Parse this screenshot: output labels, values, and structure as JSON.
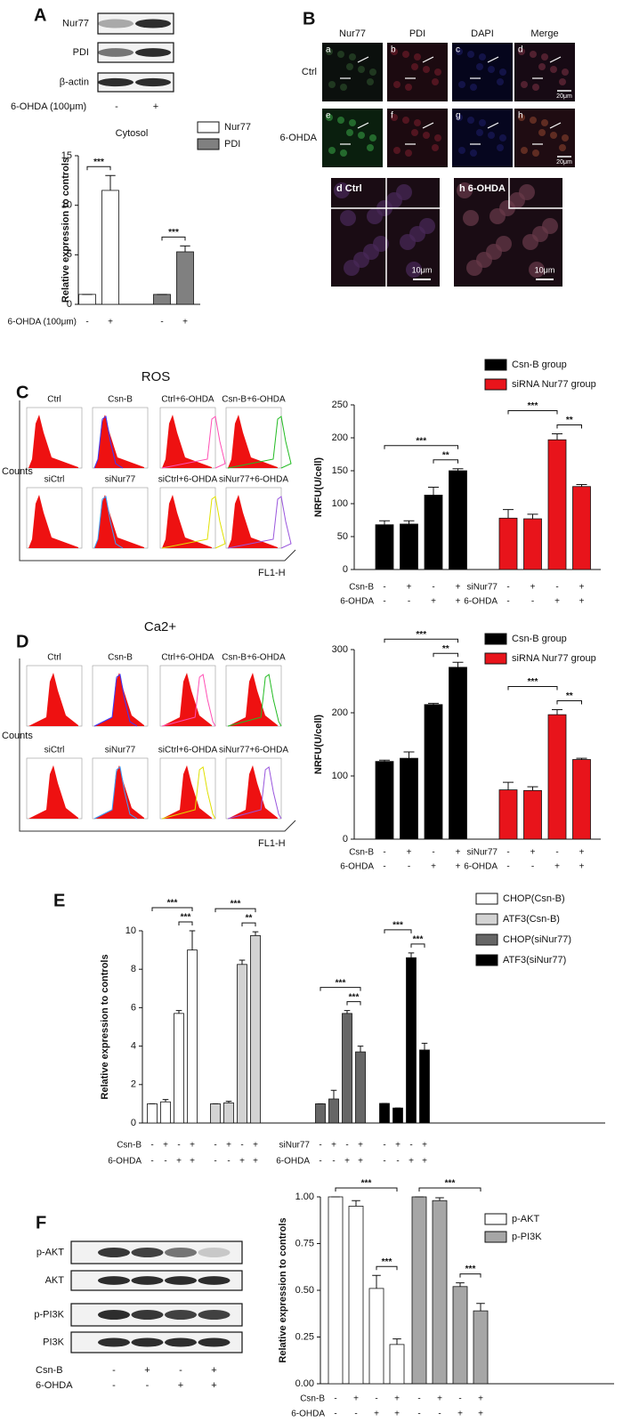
{
  "panel_labels": [
    "A",
    "B",
    "C",
    "D",
    "E",
    "F"
  ],
  "blot_a": {
    "rows": [
      "Nur77",
      "PDI",
      "β-actin"
    ],
    "treatment": {
      "label": "6-OHDA (100μm)",
      "signs": [
        "-",
        "+"
      ]
    }
  },
  "microscopy": {
    "columns": [
      "Nur77",
      "PDI",
      "DAPI",
      "Merge"
    ],
    "rows": [
      "Ctrl",
      "6-OHDA"
    ],
    "panel_letters": [
      "a",
      "b",
      "c",
      "d",
      "e",
      "f",
      "g",
      "h"
    ],
    "scale_bars": [
      "20μm",
      "20μm"
    ],
    "zooms": [
      {
        "label": "d Ctrl",
        "scale_bar": "10μm"
      },
      {
        "label": "h 6-OHDA",
        "scale_bar": "10μm"
      }
    ]
  },
  "flow": [
    {
      "labels": [
        "Ctrl",
        "Csn-B",
        "Ctrl+6-OHDA",
        "Csn-B+6-OHDA",
        "siCtrl",
        "siNur77",
        "siCtrl+6-OHDA",
        "siNur77+6-OHDA"
      ],
      "y_label": "Counts",
      "x_label": "FL1-H"
    },
    {
      "labels": [
        "Ctrl",
        "Csn-B",
        "Ctrl+6-OHDA",
        "Csn-B+6-OHDA",
        "siCtrl",
        "siNur77",
        "siCtrl+6-OHDA",
        "siNur77+6-OHDA"
      ],
      "y_label": "Counts",
      "x_label": "FL1-H"
    }
  ],
  "blot_f": {
    "rows": [
      "p-AKT",
      "AKT",
      "p-PI3K",
      "PI3K"
    ],
    "treatments": [
      {
        "label": "Csn-B",
        "signs": [
          "-",
          "+",
          "-",
          "+"
        ]
      },
      {
        "label": "6-OHDA",
        "signs": [
          "-",
          "-",
          "+",
          "+"
        ]
      }
    ]
  },
  "chart_data": [
    {
      "type": "bar",
      "title": "Cytosol",
      "y_label": "Relative expression to controls",
      "ylim": [
        0,
        15
      ],
      "yticks": [
        0,
        5,
        10,
        15
      ],
      "series": [
        {
          "name": "Nur77",
          "color": "#ffffff",
          "values": [
            1,
            11.5
          ],
          "errors": [
            0,
            1.5
          ],
          "rows": [
            {
              "label": "6-OHDA (100μm)",
              "signs": [
                "-",
                "+"
              ]
            }
          ],
          "annotations": [
            {
              "text": "***",
              "bars": [
                0,
                1
              ]
            }
          ]
        },
        {
          "name": "PDI",
          "color": "#808080",
          "values": [
            1,
            5.3
          ],
          "errors": [
            0,
            0.6
          ],
          "rows": [
            {
              "signs": [
                "-",
                "+"
              ]
            }
          ],
          "annotations": [
            {
              "text": "***",
              "bars": [
                0,
                1
              ]
            }
          ]
        }
      ]
    },
    {
      "type": "bar",
      "title": "ROS",
      "y_label": "NRFU(U/cell)",
      "ylim": [
        0,
        250
      ],
      "yticks": [
        0,
        50,
        100,
        150,
        200,
        250
      ],
      "series": [
        {
          "name": "Csn-B group",
          "color": "#000000",
          "values": [
            68,
            69,
            113,
            150
          ],
          "errors": [
            6,
            5,
            12,
            3
          ],
          "rows": [
            {
              "label": "Csn-B",
              "signs": [
                "-",
                "+",
                "-",
                "+"
              ]
            },
            {
              "label": "6-OHDA",
              "signs": [
                "-",
                "-",
                "+",
                "+"
              ]
            }
          ],
          "annotations": [
            {
              "text": "**",
              "bars": [
                2,
                3
              ]
            },
            {
              "text": "***",
              "bars": [
                0,
                3
              ]
            }
          ]
        },
        {
          "name": "siRNA Nur77 group",
          "color": "#e8141b",
          "values": [
            78,
            77,
            197,
            126
          ],
          "errors": [
            13,
            7,
            9,
            3
          ],
          "rows": [
            {
              "label": "siNur77",
              "signs": [
                "-",
                "+",
                "-",
                "+"
              ]
            },
            {
              "label": "6-OHDA",
              "signs": [
                "-",
                "-",
                "+",
                "+"
              ]
            }
          ],
          "annotations": [
            {
              "text": "**",
              "bars": [
                2,
                3
              ]
            },
            {
              "text": "***",
              "bars": [
                0,
                2
              ]
            }
          ]
        }
      ]
    },
    {
      "type": "bar",
      "title": "Ca2+",
      "y_label": "NRFU(U/cell)",
      "ylim": [
        0,
        300
      ],
      "yticks": [
        0,
        100,
        200,
        300
      ],
      "series": [
        {
          "name": "Csn-B group",
          "color": "#000000",
          "values": [
            123,
            128,
            213,
            272
          ],
          "errors": [
            2,
            10,
            2,
            8
          ],
          "rows": [
            {
              "label": "Csn-B",
              "signs": [
                "-",
                "+",
                "-",
                "+"
              ]
            },
            {
              "label": "6-OHDA",
              "signs": [
                "-",
                "-",
                "+",
                "+"
              ]
            }
          ],
          "annotations": [
            {
              "text": "**",
              "bars": [
                2,
                3
              ]
            },
            {
              "text": "***",
              "bars": [
                0,
                3
              ]
            }
          ]
        },
        {
          "name": "siRNA Nur77 group",
          "color": "#e8141b",
          "values": [
            78,
            77,
            197,
            126
          ],
          "errors": [
            12,
            6,
            8,
            2
          ],
          "rows": [
            {
              "label": "siNur77",
              "signs": [
                "-",
                "+",
                "-",
                "+"
              ]
            },
            {
              "label": "6-OHDA",
              "signs": [
                "-",
                "-",
                "+",
                "+"
              ]
            }
          ],
          "annotations": [
            {
              "text": "**",
              "bars": [
                2,
                3
              ]
            },
            {
              "text": "***",
              "bars": [
                0,
                2
              ]
            }
          ]
        }
      ]
    },
    {
      "type": "bar",
      "y_label": "Relative  expression to controls",
      "ylim": [
        0,
        10
      ],
      "yticks": [
        0,
        2,
        4,
        6,
        8,
        10
      ],
      "series": [
        {
          "name": "CHOP(Csn-B)",
          "color": "#ffffff",
          "values": [
            1,
            1.1,
            5.7,
            9.0
          ],
          "errors": [
            0,
            0.12,
            0.15,
            1.0
          ],
          "rows": [
            {
              "label": "Csn-B",
              "signs": [
                "-",
                "+",
                "-",
                "+"
              ]
            },
            {
              "label": "6-OHDA",
              "signs": [
                "-",
                "-",
                "+",
                "+"
              ]
            }
          ],
          "annotations": [
            {
              "text": "***",
              "bars": [
                2,
                3
              ]
            },
            {
              "text": "***",
              "bars": [
                0,
                3
              ]
            }
          ]
        },
        {
          "name": "ATF3(Csn-B)",
          "color": "#d3d3d3",
          "values": [
            1,
            1.05,
            8.25,
            9.75
          ],
          "errors": [
            0,
            0.08,
            0.22,
            0.2
          ],
          "rows": [
            {
              "signs": [
                "-",
                "+",
                "-",
                "+"
              ]
            },
            {
              "signs": [
                "-",
                "-",
                "+",
                "+"
              ]
            }
          ],
          "annotations": [
            {
              "text": "**",
              "bars": [
                2,
                3
              ]
            },
            {
              "text": "***",
              "bars": [
                0,
                3
              ]
            }
          ]
        },
        {
          "name": "CHOP(siNur77)",
          "color": "#666666",
          "values": [
            1,
            1.25,
            5.7,
            3.7
          ],
          "errors": [
            0,
            0.45,
            0.15,
            0.3
          ],
          "rows": [
            {
              "label": "siNur77",
              "signs": [
                "-",
                "+",
                "-",
                "+"
              ]
            },
            {
              "label": "6-OHDA",
              "signs": [
                "-",
                "-",
                "+",
                "+"
              ]
            }
          ],
          "annotations": [
            {
              "text": "***",
              "bars": [
                2,
                3
              ]
            },
            {
              "text": "***",
              "bars": [
                0,
                3
              ]
            }
          ]
        },
        {
          "name": "ATF3(siNur77)",
          "color": "#000000",
          "values": [
            1.02,
            0.78,
            8.6,
            3.8
          ],
          "errors": [
            0,
            0,
            0.25,
            0.35
          ],
          "rows": [
            {
              "signs": [
                "-",
                "+",
                "-",
                "+"
              ]
            },
            {
              "signs": [
                "-",
                "-",
                "+",
                "+"
              ]
            }
          ],
          "annotations": [
            {
              "text": "***",
              "bars": [
                2,
                3
              ]
            },
            {
              "text": "***",
              "bars": [
                0,
                2
              ]
            }
          ]
        }
      ]
    },
    {
      "type": "bar",
      "y_label": "Relative  expression to controls",
      "ylim": [
        0,
        1
      ],
      "yticks": [
        {
          "value": 0,
          "label": "0.00"
        },
        {
          "value": 0.25,
          "label": "0.25"
        },
        {
          "value": 0.5,
          "label": "0.50"
        },
        {
          "value": 0.75,
          "label": "0.75"
        },
        {
          "value": 1,
          "label": "1.00"
        }
      ],
      "series": [
        {
          "name": "p-AKT",
          "color": "#ffffff",
          "values": [
            1,
            0.95,
            0.51,
            0.21
          ],
          "errors": [
            0,
            0.03,
            0.07,
            0.03
          ],
          "rows": [
            {
              "label": "Csn-B",
              "signs": [
                "-",
                "+",
                "-",
                "+"
              ]
            },
            {
              "label": "6-OHDA",
              "signs": [
                "-",
                "-",
                "+",
                "+"
              ]
            }
          ],
          "annotations": [
            {
              "text": "***",
              "bars": [
                2,
                3
              ]
            },
            {
              "text": "***",
              "bars": [
                0,
                3
              ]
            }
          ]
        },
        {
          "name": "p-PI3K",
          "color": "#a6a6a6",
          "values": [
            1,
            0.98,
            0.52,
            0.39
          ],
          "errors": [
            0,
            0.015,
            0.02,
            0.04
          ],
          "rows": [
            {
              "signs": [
                "-",
                "+",
                "-",
                "+"
              ]
            },
            {
              "signs": [
                "-",
                "-",
                "+",
                "+"
              ]
            }
          ],
          "annotations": [
            {
              "text": "***",
              "bars": [
                2,
                3
              ]
            },
            {
              "text": "***",
              "bars": [
                0,
                3
              ]
            }
          ]
        }
      ]
    }
  ]
}
